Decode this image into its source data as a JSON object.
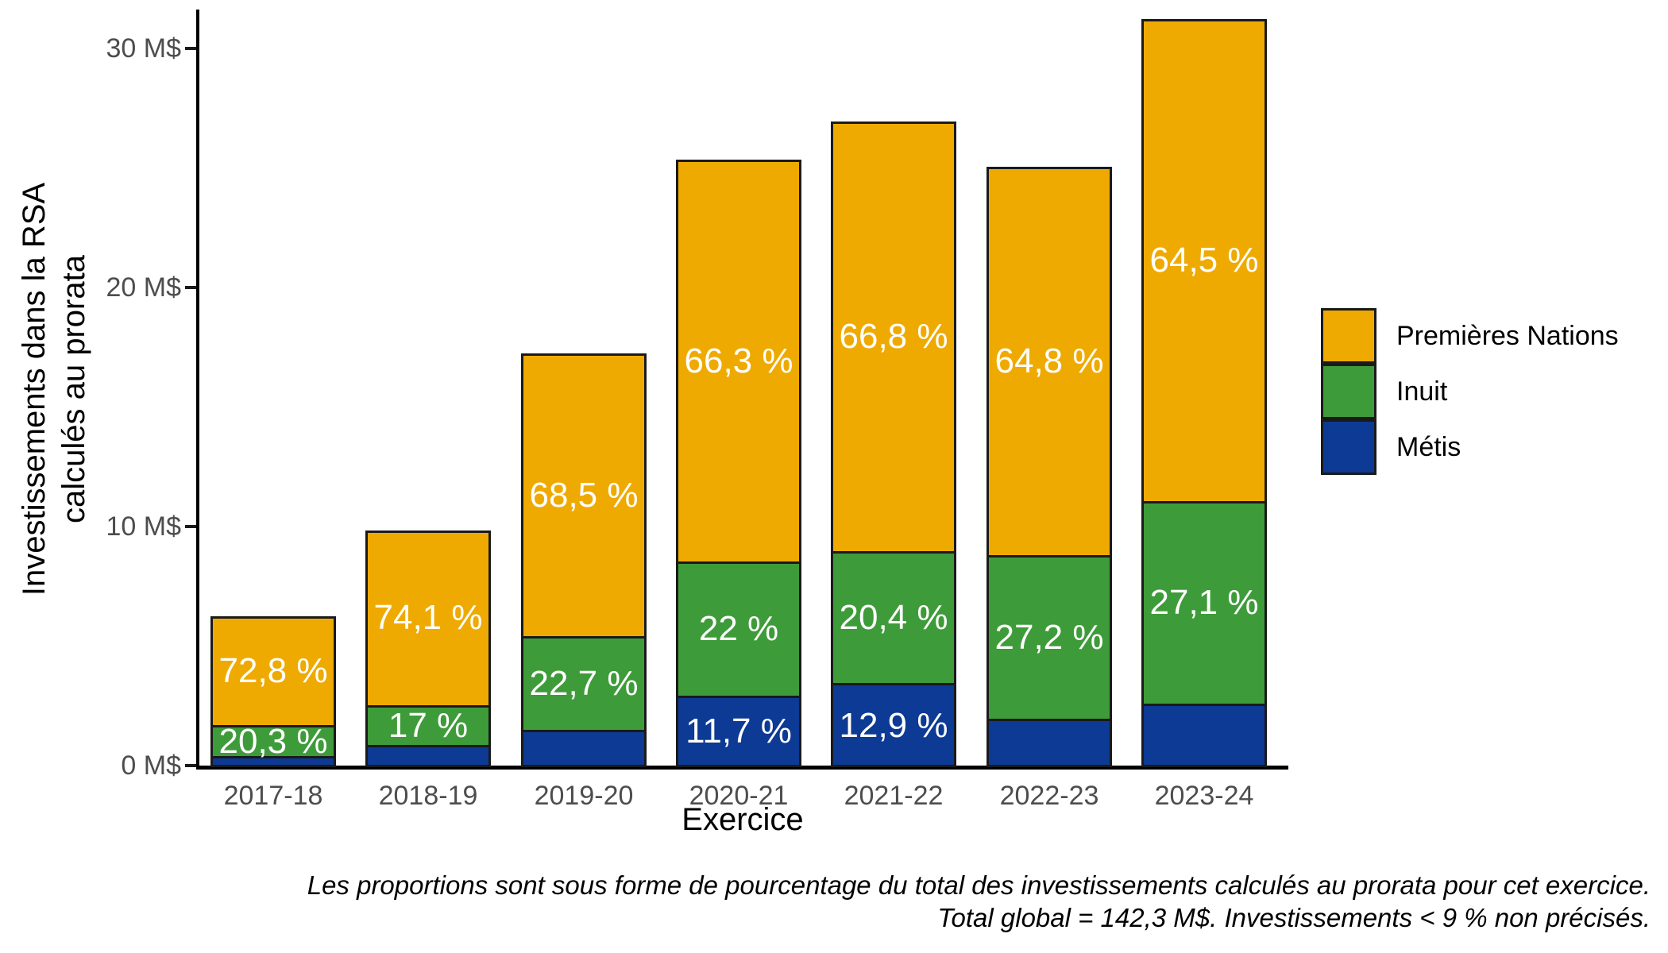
{
  "colors": {
    "premieres_nations": "#EFAA02",
    "inuit": "#3E9B39",
    "metis": "#0C3A94",
    "bar_border": "#1A1A1A",
    "axis_line": "#000000",
    "axis_text": "#4D4D4D",
    "bar_label_text": "#FFFFFF",
    "background": "#FFFFFF"
  },
  "y_axis": {
    "title_line1": "Investissements dans la RSA",
    "title_line2": "calculés au prorata",
    "ticks": [
      "0 M$",
      "10 M$",
      "20 M$",
      "30 M$"
    ]
  },
  "x_axis": {
    "title": "Exercice"
  },
  "legend": {
    "items": [
      {
        "label": "Premières Nations",
        "color_key": "premieres_nations"
      },
      {
        "label": "Inuit",
        "color_key": "inuit"
      },
      {
        "label": "Métis",
        "color_key": "metis"
      }
    ]
  },
  "caption": {
    "line1": "Les proportions sont sous forme de pourcentage du total des investissements calculés au prorata pour cet exercice.",
    "line2": "Total global = 142,3 M$. Investissements < 9 % non précisés."
  },
  "chart_data": {
    "type": "bar",
    "stacked": true,
    "title": "",
    "xlabel": "Exercice",
    "ylabel": "Investissements dans la RSA calculés au prorata",
    "unit": "M$",
    "ylim": [
      0,
      31.6
    ],
    "grid": false,
    "legend_position": "right",
    "categories": [
      "2017-18",
      "2018-19",
      "2019-20",
      "2020-21",
      "2021-22",
      "2022-23",
      "2023-24"
    ],
    "totals_m_dollars": [
      6.3,
      9.9,
      17.3,
      25.4,
      27.0,
      25.1,
      31.3
    ],
    "total_global_m_dollars": "142,3",
    "series": [
      {
        "name": "Métis",
        "color_key": "metis",
        "percent_of_year_total": [
          6.9,
          8.9,
          8.8,
          11.7,
          12.9,
          8.0,
          8.4
        ],
        "bar_labels": [
          "",
          "",
          "",
          "11,7 %",
          "12,9 %",
          "",
          ""
        ]
      },
      {
        "name": "Inuit",
        "color_key": "inuit",
        "percent_of_year_total": [
          20.3,
          17.0,
          22.7,
          22.0,
          20.4,
          27.2,
          27.1
        ],
        "bar_labels": [
          "20,3 %",
          "17 %",
          "22,7 %",
          "22 %",
          "20,4 %",
          "27,2 %",
          "27,1 %"
        ]
      },
      {
        "name": "Premières Nations",
        "color_key": "premieres_nations",
        "percent_of_year_total": [
          72.8,
          74.1,
          68.5,
          66.3,
          66.8,
          64.8,
          64.5
        ],
        "bar_labels": [
          "72,8 %",
          "74,1 %",
          "68,5 %",
          "66,3 %",
          "66,8 %",
          "64,8 %",
          "64,5 %"
        ]
      }
    ]
  }
}
